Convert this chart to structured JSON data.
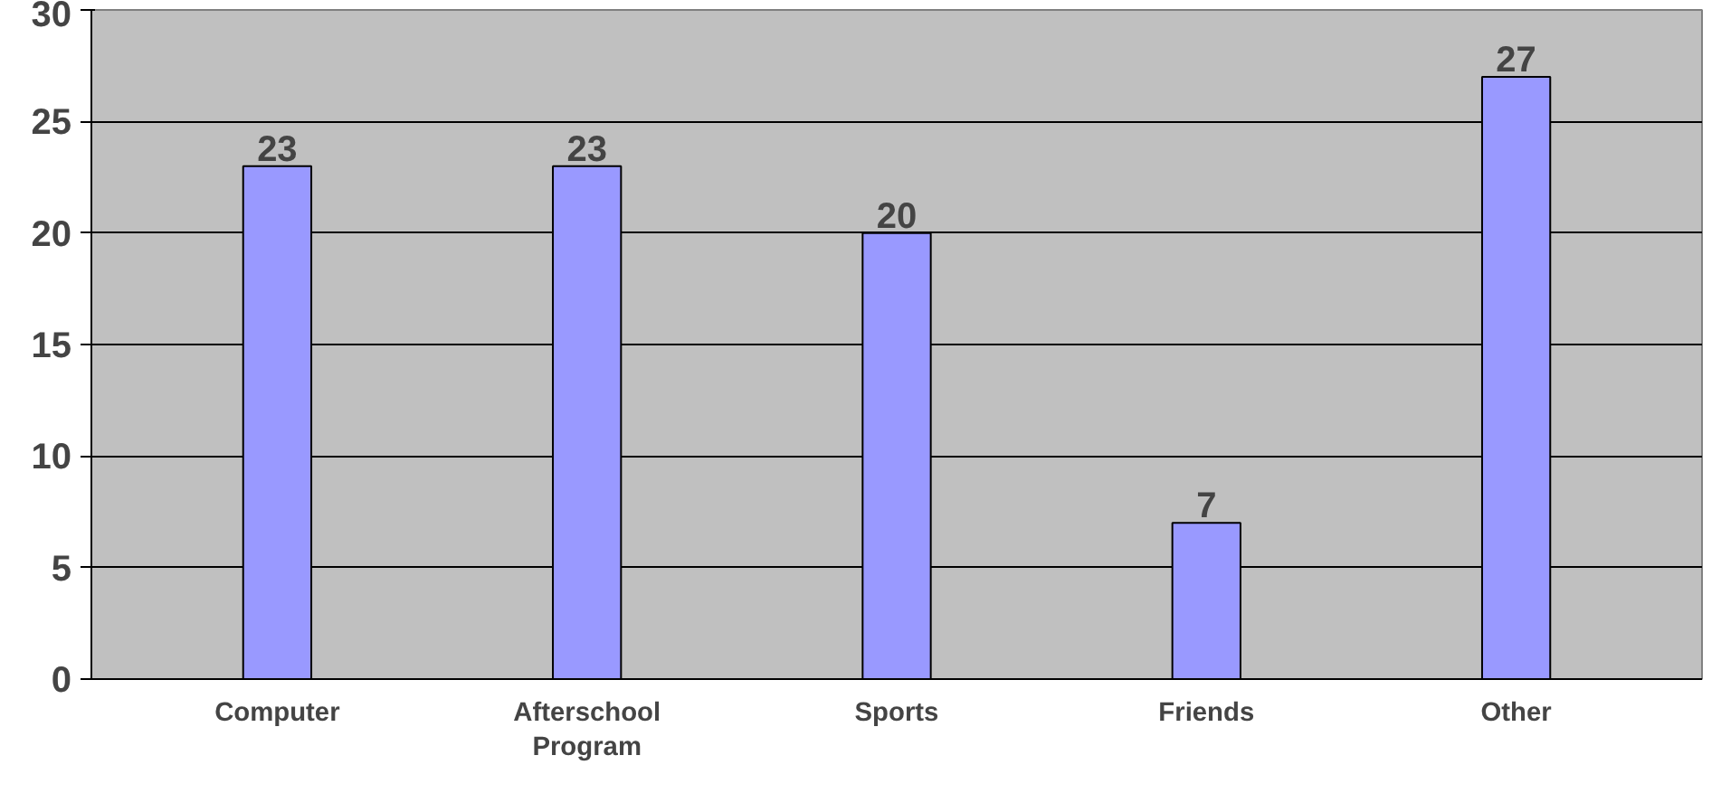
{
  "chart_data": {
    "type": "bar",
    "categories": [
      "Computer",
      "Afterschool Program",
      "Sports",
      "Friends",
      "Other"
    ],
    "values": [
      23,
      23,
      20,
      7,
      27
    ],
    "color": "#9999ff",
    "ylim": [
      0,
      30
    ],
    "yticks": [
      0,
      5,
      10,
      15,
      20,
      25,
      30
    ],
    "grid": "y",
    "data_labels": true
  }
}
